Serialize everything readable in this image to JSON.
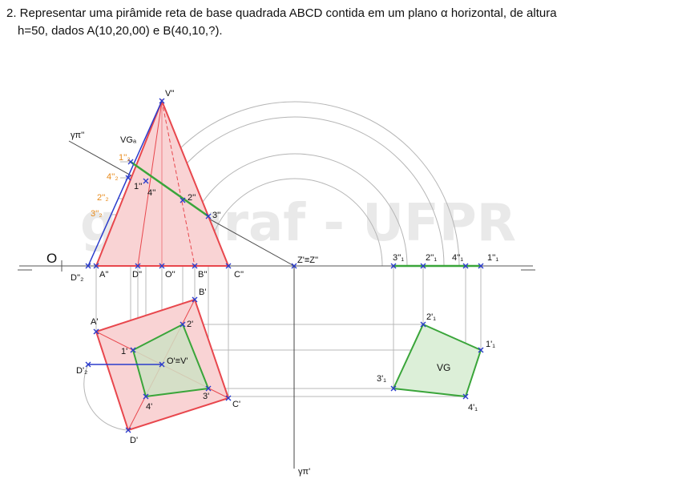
{
  "problem": {
    "line1": "2. Representar uma pirâmide reta de base quadrada ABCD contida em um plano α horizontal, de altura",
    "line2": "h=50, dados A(10,20,00) e B(40,10,?)."
  },
  "watermark": "geegraf - UFPR",
  "colors": {
    "pyramid_red": "#e8474d",
    "pyramid_fill": "#f9d3d4",
    "section_green": "#3aa53a",
    "section_fill": "#dcefd8",
    "blue": "#2b3ccc",
    "orange": "#e88a1a",
    "construction_gray": "#b0b0b0"
  },
  "labels": {
    "ground_line_O": "O",
    "d2_front": "D''₂",
    "a_front": "A''",
    "d_front": "D''",
    "o_front": "O''",
    "b_front": "B''",
    "c_front": "C''",
    "v_front": "V''",
    "z_front": "Z'≡Z''",
    "vg_a": "VGₐ",
    "p1_2": "1''₂",
    "p4_2": "4''₂",
    "p1_front": "1''",
    "p4_front": "4''",
    "p2_front": "2''",
    "p3_front": "3''",
    "p2_2": "2''₂",
    "p3_2": "3''₂",
    "gamma_front": "γπ''",
    "gamma_top": "γπ'",
    "p3_1_front": "3''₁",
    "p2_1_front": "2''₁",
    "p4_1_front": "4''₁",
    "p1_1_front": "1''₁",
    "b_top": "B'",
    "a_top": "A'",
    "p2_top": "2'",
    "p1_top": "1'",
    "ov_top": "O'≡V'",
    "d2_top": "D'₂",
    "p4_top": "4'",
    "p3_top": "3'",
    "c_top": "C'",
    "d_top": "D'",
    "vg_label": "VG",
    "p2_1_top": "2'₁",
    "p1_1_top": "1'₁",
    "p3_1_top": "3'₁",
    "p4_1_top": "4'₁"
  }
}
